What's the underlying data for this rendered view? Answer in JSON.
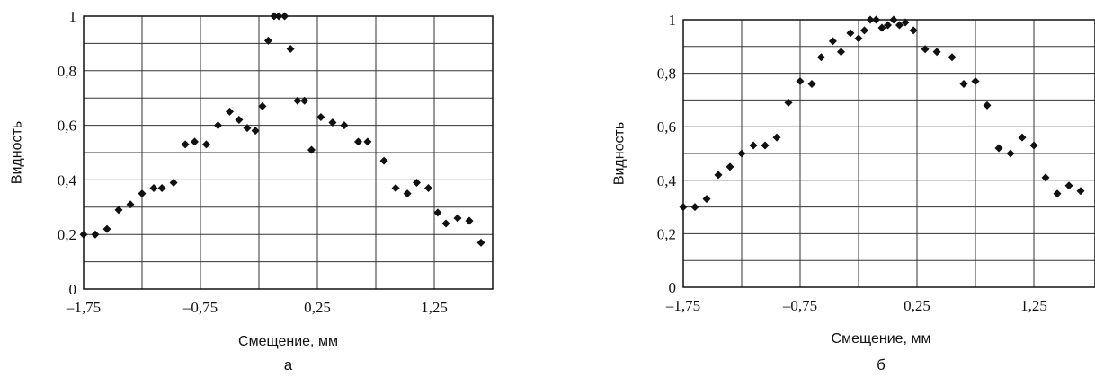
{
  "chart_data": [
    {
      "type": "scatter",
      "panel_label": "а",
      "xlabel": "Смещение, мм",
      "ylabel": "Видность",
      "xlim": [
        -1.75,
        1.75
      ],
      "ylim": [
        0,
        1
      ],
      "xticks": [
        -1.75,
        -0.75,
        0.25,
        1.25
      ],
      "xtick_labels": [
        "–1,75",
        "–0,75",
        "0,25",
        "1,25"
      ],
      "yticks": [
        0,
        0.2,
        0.4,
        0.6,
        0.8,
        1
      ],
      "ytick_labels": [
        "0",
        "0,2",
        "0,4",
        "0,6",
        "0,8",
        "1"
      ],
      "grid": true,
      "x": [
        -1.75,
        -1.65,
        -1.55,
        -1.45,
        -1.35,
        -1.25,
        -1.15,
        -1.08,
        -0.98,
        -0.88,
        -0.8,
        -0.7,
        -0.6,
        -0.5,
        -0.42,
        -0.35,
        -0.28,
        -0.22,
        -0.17,
        -0.12,
        -0.08,
        -0.03,
        0.02,
        0.08,
        0.14,
        0.2,
        0.28,
        0.38,
        0.48,
        0.6,
        0.68,
        0.82,
        0.92,
        1.02,
        1.1,
        1.2,
        1.28,
        1.35,
        1.45,
        1.55,
        1.65
      ],
      "y": [
        0.2,
        0.2,
        0.22,
        0.29,
        0.31,
        0.35,
        0.37,
        0.37,
        0.39,
        0.53,
        0.54,
        0.53,
        0.6,
        0.65,
        0.62,
        0.59,
        0.58,
        0.67,
        0.91,
        1.0,
        1.0,
        1.0,
        0.88,
        0.69,
        0.69,
        0.51,
        0.63,
        0.61,
        0.6,
        0.54,
        0.54,
        0.47,
        0.37,
        0.35,
        0.39,
        0.37,
        0.28,
        0.24,
        0.26,
        0.25,
        0.17
      ]
    },
    {
      "type": "scatter",
      "panel_label": "б",
      "xlabel": "Смещение, мм",
      "ylabel": "Видность",
      "xlim": [
        -1.75,
        1.6
      ],
      "ylim": [
        0,
        1
      ],
      "xticks": [
        -1.75,
        -0.75,
        0.25,
        1.25
      ],
      "xtick_labels": [
        "–1,75",
        "–0,75",
        "0,25",
        "1,25"
      ],
      "yticks": [
        0,
        0.2,
        0.4,
        0.6,
        0.8,
        1
      ],
      "ytick_labels": [
        "0",
        "0,2",
        "0,4",
        "0,6",
        "0,8",
        "1"
      ],
      "grid": true,
      "x": [
        -1.75,
        -1.65,
        -1.55,
        -1.45,
        -1.35,
        -1.25,
        -1.15,
        -1.05,
        -0.95,
        -0.85,
        -0.75,
        -0.65,
        -0.57,
        -0.47,
        -0.4,
        -0.32,
        -0.25,
        -0.2,
        -0.15,
        -0.1,
        -0.05,
        0.0,
        0.05,
        0.1,
        0.15,
        0.22,
        0.32,
        0.42,
        0.55,
        0.65,
        0.75,
        0.85,
        0.95,
        1.05,
        1.15,
        1.25,
        1.35,
        1.45,
        1.55,
        1.65
      ],
      "y": [
        0.3,
        0.3,
        0.33,
        0.42,
        0.45,
        0.5,
        0.53,
        0.53,
        0.56,
        0.69,
        0.77,
        0.76,
        0.86,
        0.92,
        0.88,
        0.95,
        0.93,
        0.96,
        1.0,
        1.0,
        0.97,
        0.98,
        1.0,
        0.98,
        0.99,
        0.96,
        0.89,
        0.88,
        0.86,
        0.76,
        0.77,
        0.68,
        0.52,
        0.5,
        0.56,
        0.53,
        0.41,
        0.35,
        0.38,
        0.36
      ]
    }
  ]
}
